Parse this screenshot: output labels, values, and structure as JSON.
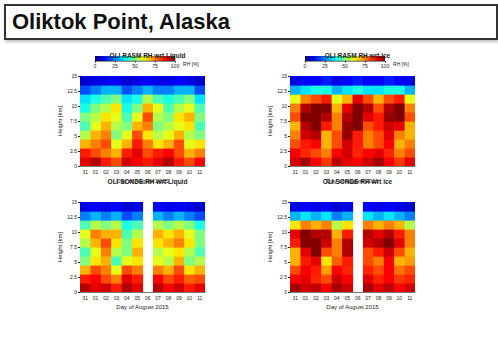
{
  "title": "Oliktok Point, Alaska",
  "chart_data": [
    {
      "type": "heatmap",
      "title": "OLI RASM RH wrt Liquid",
      "x_label": "Day of August 2015",
      "y_label": "Height [km]",
      "categories": [
        "31",
        "01",
        "02",
        "03",
        "04",
        "05",
        "06",
        "07",
        "08",
        "09",
        "10",
        "11"
      ],
      "ylim": [
        0,
        15
      ],
      "yticks": [
        0,
        2.5,
        5,
        7.5,
        10,
        12.5,
        15
      ],
      "height_bins": [
        0,
        1.5,
        3,
        4.5,
        6,
        7.5,
        9,
        10.5,
        12,
        13.5,
        15
      ],
      "cells": [
        [
          90,
          95,
          85,
          80,
          92,
          88,
          85,
          90,
          95,
          85,
          80,
          88
        ],
        [
          85,
          80,
          75,
          70,
          85,
          90,
          80,
          85,
          88,
          80,
          70,
          75
        ],
        [
          70,
          75,
          80,
          60,
          70,
          85,
          75,
          65,
          70,
          80,
          60,
          65
        ],
        [
          55,
          70,
          75,
          50,
          60,
          80,
          65,
          55,
          60,
          70,
          55,
          50
        ],
        [
          45,
          60,
          70,
          55,
          50,
          70,
          75,
          50,
          55,
          60,
          65,
          45
        ],
        [
          50,
          55,
          65,
          60,
          45,
          60,
          80,
          55,
          50,
          65,
          70,
          50
        ],
        [
          40,
          50,
          55,
          65,
          40,
          50,
          70,
          60,
          45,
          55,
          60,
          45
        ],
        [
          35,
          40,
          45,
          50,
          35,
          40,
          55,
          45,
          40,
          45,
          50,
          35
        ],
        [
          20,
          25,
          30,
          30,
          20,
          25,
          30,
          25,
          25,
          30,
          30,
          20
        ],
        [
          8,
          10,
          10,
          12,
          8,
          10,
          12,
          10,
          10,
          12,
          10,
          8
        ]
      ],
      "colorbar": {
        "label": "RH [%]",
        "range": [
          0,
          100
        ],
        "ticks": [
          0,
          25,
          50,
          75,
          100
        ]
      }
    },
    {
      "type": "heatmap",
      "title": "OLI RASM RH wrt Ice",
      "x_label": "Day of August 2015",
      "y_label": "Height [km]",
      "categories": [
        "31",
        "01",
        "02",
        "03",
        "04",
        "05",
        "06",
        "07",
        "08",
        "09",
        "10",
        "11"
      ],
      "ylim": [
        0,
        15
      ],
      "yticks": [
        0,
        2.5,
        5,
        7.5,
        10,
        12.5,
        15
      ],
      "height_bins": [
        0,
        1.5,
        3,
        4.5,
        6,
        7.5,
        9,
        10.5,
        12,
        13.5,
        15
      ],
      "cells": [
        [
          92,
          96,
          88,
          82,
          94,
          90,
          88,
          92,
          96,
          88,
          82,
          90
        ],
        [
          88,
          84,
          80,
          75,
          88,
          92,
          84,
          88,
          90,
          84,
          75,
          80
        ],
        [
          80,
          85,
          88,
          70,
          80,
          92,
          85,
          75,
          80,
          88,
          70,
          75
        ],
        [
          75,
          92,
          95,
          70,
          80,
          98,
          85,
          75,
          80,
          90,
          75,
          70
        ],
        [
          70,
          95,
          100,
          85,
          75,
          98,
          100,
          80,
          85,
          92,
          90,
          70
        ],
        [
          80,
          100,
          100,
          95,
          75,
          95,
          100,
          90,
          85,
          98,
          100,
          80
        ],
        [
          75,
          95,
          100,
          100,
          70,
          90,
          100,
          95,
          80,
          95,
          100,
          75
        ],
        [
          60,
          75,
          80,
          85,
          60,
          70,
          90,
          80,
          70,
          80,
          85,
          60
        ],
        [
          30,
          35,
          40,
          40,
          30,
          35,
          40,
          35,
          35,
          40,
          40,
          30
        ],
        [
          10,
          12,
          12,
          15,
          10,
          12,
          15,
          12,
          12,
          15,
          12,
          10
        ]
      ],
      "colorbar": {
        "label": "RH [%]",
        "range": [
          0,
          100
        ],
        "ticks": [
          0,
          25,
          50,
          75,
          100
        ]
      }
    },
    {
      "type": "heatmap",
      "title": "OLI SONDE RH wrt Liquid",
      "x_label": "Day of August 2015",
      "y_label": "Height [km]",
      "categories": [
        "31",
        "01",
        "02",
        "03",
        "04",
        "05",
        "06",
        "07",
        "08",
        "09",
        "10",
        "11"
      ],
      "ylim": [
        0,
        15
      ],
      "yticks": [
        0,
        2.5,
        5,
        7.5,
        10,
        12.5,
        15
      ],
      "height_bins": [
        0,
        1.5,
        3,
        4.5,
        6,
        7.5,
        9,
        10.5,
        12,
        13.5,
        15
      ],
      "cells": [
        [
          95,
          90,
          92,
          85,
          95,
          90,
          null,
          95,
          88,
          92,
          85,
          90
        ],
        [
          85,
          88,
          80,
          75,
          90,
          85,
          null,
          88,
          80,
          85,
          78,
          80
        ],
        [
          70,
          80,
          75,
          60,
          80,
          75,
          null,
          75,
          70,
          80,
          65,
          70
        ],
        [
          50,
          65,
          70,
          45,
          60,
          65,
          null,
          60,
          55,
          70,
          50,
          55
        ],
        [
          45,
          60,
          75,
          55,
          50,
          70,
          null,
          55,
          60,
          65,
          55,
          45
        ],
        [
          55,
          70,
          80,
          65,
          50,
          65,
          null,
          65,
          70,
          75,
          65,
          50
        ],
        [
          60,
          75,
          70,
          70,
          45,
          55,
          null,
          70,
          65,
          70,
          60,
          50
        ],
        [
          45,
          55,
          50,
          55,
          40,
          45,
          null,
          55,
          50,
          55,
          50,
          40
        ],
        [
          25,
          30,
          25,
          30,
          20,
          25,
          null,
          30,
          25,
          30,
          25,
          20
        ],
        [
          10,
          12,
          10,
          12,
          8,
          10,
          null,
          12,
          10,
          12,
          10,
          8
        ]
      ]
    },
    {
      "type": "heatmap",
      "title": "OLI SONDE RH wrt Ice",
      "x_label": "Day of August 2015",
      "y_label": "Height [km]",
      "categories": [
        "31",
        "01",
        "02",
        "03",
        "04",
        "05",
        "06",
        "07",
        "08",
        "09",
        "10",
        "11"
      ],
      "ylim": [
        0,
        15
      ],
      "yticks": [
        0,
        2.5,
        5,
        7.5,
        10,
        12.5,
        15
      ],
      "height_bins": [
        0,
        1.5,
        3,
        4.5,
        6,
        7.5,
        9,
        10.5,
        12,
        13.5,
        15
      ],
      "cells": [
        [
          96,
          92,
          94,
          88,
          96,
          92,
          null,
          96,
          90,
          94,
          88,
          92
        ],
        [
          88,
          90,
          84,
          80,
          92,
          88,
          null,
          90,
          84,
          88,
          82,
          84
        ],
        [
          80,
          88,
          85,
          72,
          88,
          84,
          null,
          84,
          80,
          88,
          76,
          80
        ],
        [
          70,
          85,
          90,
          65,
          78,
          85,
          null,
          80,
          75,
          88,
          70,
          72
        ],
        [
          70,
          90,
          100,
          80,
          75,
          95,
          null,
          80,
          85,
          92,
          80,
          70
        ],
        [
          85,
          100,
          100,
          92,
          75,
          95,
          null,
          92,
          95,
          100,
          90,
          75
        ],
        [
          90,
          100,
          95,
          95,
          70,
          85,
          null,
          95,
          90,
          95,
          85,
          75
        ],
        [
          65,
          75,
          70,
          75,
          55,
          65,
          null,
          75,
          70,
          75,
          70,
          55
        ],
        [
          30,
          35,
          30,
          35,
          25,
          30,
          null,
          35,
          30,
          35,
          30,
          25
        ],
        [
          10,
          12,
          10,
          12,
          8,
          10,
          null,
          12,
          10,
          12,
          10,
          8
        ]
      ]
    }
  ]
}
